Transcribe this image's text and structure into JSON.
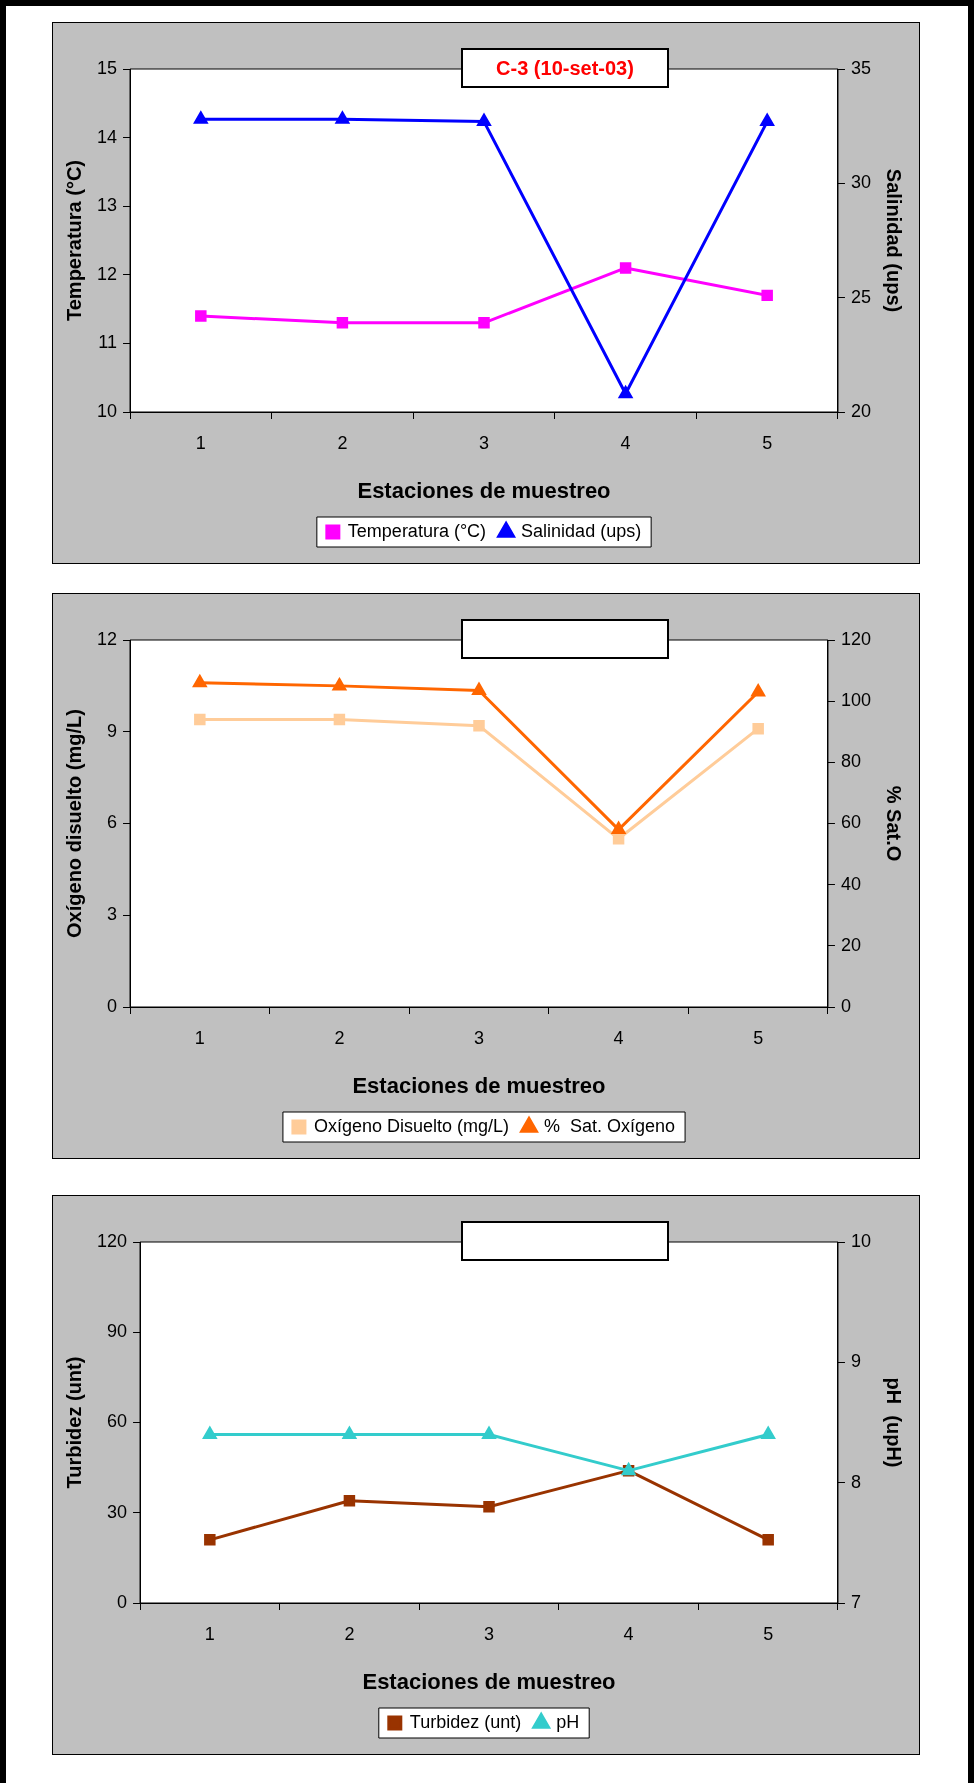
{
  "chart_data": [
    {
      "type": "line",
      "title": "C-3 (10-set-03)",
      "xlabel": "Estaciones de muestreo",
      "ylabel": "Temperatura (°C)",
      "y2label": "Salinidad (ups)",
      "categories": [
        "1",
        "2",
        "3",
        "4",
        "5"
      ],
      "ylim": [
        10,
        15
      ],
      "yticks": [
        10,
        11,
        12,
        13,
        14,
        15
      ],
      "y2lim": [
        20,
        35
      ],
      "y2ticks": [
        20,
        25,
        30,
        35
      ],
      "legend": "bottom",
      "series": [
        {
          "name": "Temperatura (°C)",
          "color": "#ff00ff",
          "marker": "square",
          "values": [
            11.4,
            11.3,
            11.3,
            12.1,
            11.7
          ]
        },
        {
          "name": "Salinidad (ups)",
          "color": "#0000ff",
          "marker": "triangle",
          "axis": "y2",
          "values": [
            32.8,
            32.8,
            32.7,
            20.8,
            32.7
          ]
        }
      ]
    },
    {
      "type": "line",
      "xlabel": "Estaciones de muestreo",
      "ylabel": "Oxígeno disuelto (mg/L)",
      "y2label": "% Sat.O",
      "categories": [
        "1",
        "2",
        "3",
        "4",
        "5"
      ],
      "ylim": [
        0,
        12
      ],
      "yticks": [
        0,
        3,
        6,
        9,
        12
      ],
      "y2lim": [
        0,
        120
      ],
      "y2ticks": [
        0,
        20,
        40,
        60,
        80,
        100,
        120
      ],
      "legend": "bottom",
      "series": [
        {
          "name": "Oxígeno Disuelto (mg/L)",
          "color": "#ffcc99",
          "marker": "square",
          "values": [
            9.4,
            9.4,
            9.2,
            5.5,
            9.1
          ]
        },
        {
          "name": "%  Sat. Oxígeno",
          "color": "#ff6600",
          "marker": "triangle",
          "axis": "y2",
          "values": [
            106,
            105,
            103.5,
            58,
            103
          ]
        }
      ]
    },
    {
      "type": "line",
      "xlabel": "Estaciones de muestreo",
      "ylabel": "Turbidez (unt)",
      "y2label": "pH  (upH)",
      "categories": [
        "1",
        "2",
        "3",
        "4",
        "5"
      ],
      "ylim": [
        0,
        120
      ],
      "yticks": [
        0,
        30,
        60,
        90,
        120
      ],
      "y2lim": [
        7,
        10
      ],
      "y2ticks": [
        7,
        8,
        9,
        10
      ],
      "legend": "bottom",
      "series": [
        {
          "name": "Turbidez (unt)",
          "color": "#993300",
          "marker": "square",
          "values": [
            21,
            34,
            32,
            44,
            21
          ]
        },
        {
          "name": "pH",
          "color": "#33cccc",
          "marker": "triangle",
          "axis": "y2",
          "values": [
            8.4,
            8.4,
            8.4,
            8.1,
            8.4
          ]
        }
      ]
    }
  ]
}
